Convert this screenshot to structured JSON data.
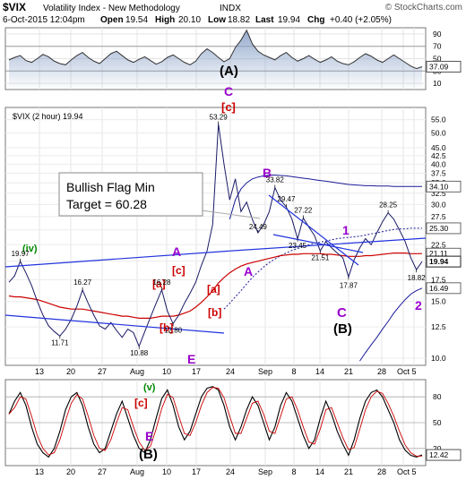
{
  "header": {
    "symbol": "$VIX",
    "name": "Volatility Index - New Methodology",
    "exchange": "INDX",
    "datetime": "6-Oct-2015 12:04pm",
    "watermark": "© StockCharts.com",
    "quote": {
      "open_label": "Open",
      "open": "19.54",
      "high_label": "High",
      "high": "20.10",
      "low_label": "Low",
      "low": "18.82",
      "last_label": "Last",
      "last": "19.94",
      "chg_label": "Chg",
      "chg": "+0.40 (+2.05%)"
    }
  },
  "colors": {
    "price": "#1a1a66",
    "ma_red": "#cc0000",
    "boll": "#1a1a99",
    "trend": "#2233dd",
    "wave_purple": "#9900cc",
    "wave_red": "#cc0000",
    "wave_green": "#008800",
    "last_box": "#ffffff"
  },
  "chart_data": [
    {
      "type": "line",
      "panel": "indicator-top",
      "ylim": [
        0,
        100
      ],
      "ticks": [
        "90",
        "70",
        "50",
        "30",
        "10"
      ],
      "last_value_label": "37.09",
      "values": [
        48,
        52,
        55,
        47,
        44,
        50,
        57,
        53,
        46,
        42,
        40,
        48,
        55,
        60,
        52,
        46,
        42,
        50,
        58,
        62,
        55,
        48,
        44,
        49,
        53,
        47,
        41,
        45,
        52,
        56,
        50,
        44,
        40,
        46,
        58,
        66,
        60,
        52,
        45,
        50,
        68,
        80,
        96,
        74,
        62,
        56,
        52,
        48,
        55,
        60,
        52,
        46,
        50,
        55,
        49,
        44,
        48,
        53,
        46,
        42,
        40,
        45,
        52,
        58,
        54,
        48,
        44,
        50,
        56,
        50,
        44,
        38,
        34,
        37
      ]
    },
    {
      "type": "line",
      "panel": "price",
      "scale": "log",
      "series_label": "$VIX (2 hour) 19.94",
      "ylim": [
        9.5,
        60
      ],
      "y_ticks": [
        "55.0",
        "50.0",
        "45.0",
        "42.5",
        "40.0",
        "37.5",
        "35.0",
        "32.5",
        "30.0",
        "27.5",
        "25.0",
        "22.5",
        "20.0",
        "17.5",
        "15.0",
        "12.5",
        "10.0"
      ],
      "right_labels": [
        "34.10",
        "25.30",
        "21.11",
        "19.94",
        "16.49"
      ],
      "x_tick_labels": [
        "13",
        "20",
        "27",
        "Aug",
        "10",
        "17",
        "24",
        "Sep",
        "8",
        "14",
        "21",
        "28",
        "Oct",
        "5"
      ],
      "annotations": [
        "19.97",
        "16.27",
        "11.71",
        "16.28",
        "12.80",
        "10.88",
        "53.29",
        "33.82",
        "29.47",
        "27.22",
        "24.49",
        "23.45",
        "21.51",
        "17.87",
        "28.25",
        "18.82"
      ],
      "values": [
        17.2,
        18.0,
        19.97,
        18.4,
        16.8,
        15.0,
        13.6,
        12.6,
        12.1,
        11.71,
        12.3,
        13.2,
        14.5,
        16.27,
        14.8,
        13.6,
        12.6,
        12.3,
        12.9,
        12.2,
        11.6,
        12.3,
        12.0,
        10.88,
        12.1,
        13.4,
        14.8,
        16.28,
        14.0,
        12.8,
        13.6,
        14.8,
        15.9,
        17.2,
        19.4,
        21.5,
        26.0,
        53.29,
        40.0,
        31.0,
        36.0,
        28.5,
        30.5,
        27.0,
        24.49,
        26.0,
        28.5,
        33.82,
        31.0,
        29.47,
        27.0,
        23.45,
        27.22,
        25.5,
        24.0,
        21.51,
        23.0,
        22.0,
        21.2,
        20.5,
        17.87,
        20.2,
        22.0,
        23.5,
        22.5,
        24.5,
        26.5,
        28.25,
        27.0,
        25.0,
        23.0,
        20.5,
        18.82,
        19.94
      ],
      "moving_average_red": [
        15.6,
        15.5,
        15.5,
        15.4,
        15.3,
        15.2,
        15.0,
        14.8,
        14.6,
        14.4,
        14.3,
        14.2,
        14.2,
        14.2,
        14.1,
        14.0,
        13.9,
        13.8,
        13.7,
        13.6,
        13.5,
        13.5,
        13.4,
        13.3,
        13.3,
        13.3,
        13.4,
        13.5,
        13.5,
        13.5,
        13.6,
        13.8,
        14.0,
        14.4,
        14.9,
        15.5,
        16.2,
        17.1,
        17.8,
        18.4,
        18.9,
        19.3,
        19.6,
        19.8,
        20.0,
        20.2,
        20.4,
        20.6,
        20.8,
        20.9,
        21.0,
        21.0,
        21.1,
        21.1,
        21.1,
        21.1,
        21.0,
        21.0,
        20.9,
        20.8,
        20.7,
        20.7,
        20.7,
        20.8,
        20.8,
        20.9,
        21.0,
        21.1,
        21.2,
        21.2,
        21.2,
        21.1,
        21.1,
        21.11
      ],
      "bollinger_upper": [
        null,
        null,
        null,
        null,
        null,
        null,
        null,
        null,
        null,
        null,
        null,
        null,
        null,
        null,
        null,
        null,
        null,
        null,
        null,
        null,
        null,
        null,
        null,
        null,
        null,
        null,
        null,
        null,
        null,
        null,
        null,
        null,
        null,
        null,
        null,
        null,
        null,
        null,
        null,
        27.0,
        31.0,
        33.5,
        35.0,
        36.0,
        36.5,
        36.8,
        37.0,
        37.0,
        36.9,
        36.8,
        36.6,
        36.4,
        36.2,
        36.0,
        35.8,
        35.6,
        35.4,
        35.2,
        35.0,
        34.8,
        34.6,
        34.5,
        34.4,
        34.3,
        34.3,
        34.2,
        34.2,
        34.2,
        34.1,
        34.1,
        34.1,
        34.1,
        34.1,
        34.1
      ],
      "bollinger_lower": [
        null,
        null,
        null,
        null,
        null,
        null,
        null,
        null,
        null,
        null,
        null,
        null,
        null,
        null,
        null,
        null,
        null,
        null,
        null,
        null,
        null,
        null,
        null,
        null,
        null,
        null,
        null,
        null,
        null,
        null,
        null,
        null,
        null,
        null,
        null,
        null,
        null,
        null,
        null,
        null,
        null,
        null,
        null,
        null,
        null,
        null,
        null,
        null,
        null,
        null,
        null,
        null,
        null,
        null,
        null,
        null,
        null,
        null,
        null,
        null,
        null,
        null,
        9.8,
        10.4,
        11.0,
        11.6,
        12.3,
        13.0,
        13.8,
        14.5,
        15.2,
        15.8,
        16.2,
        16.49
      ],
      "moving_average_dotted": [
        null,
        null,
        null,
        null,
        null,
        null,
        null,
        null,
        null,
        null,
        null,
        null,
        null,
        null,
        null,
        null,
        null,
        null,
        null,
        null,
        null,
        null,
        null,
        null,
        null,
        null,
        null,
        null,
        null,
        null,
        null,
        null,
        null,
        null,
        null,
        null,
        null,
        null,
        14.2,
        14.8,
        15.5,
        16.2,
        17.0,
        17.8,
        18.5,
        19.2,
        19.8,
        20.3,
        20.8,
        21.2,
        21.6,
        21.9,
        22.2,
        22.5,
        22.7,
        22.9,
        23.1,
        23.3,
        23.5,
        23.6,
        23.7,
        23.8,
        23.9,
        24.1,
        24.3,
        24.5,
        24.7,
        24.9,
        25.1,
        25.2,
        25.2,
        25.3,
        25.3,
        25.3
      ]
    },
    {
      "type": "line",
      "panel": "indicator-bottom",
      "ylim": [
        0,
        100
      ],
      "ticks": [
        "80",
        "50",
        "20"
      ],
      "last_value_label": "12.42",
      "values": [
        60,
        75,
        85,
        70,
        45,
        25,
        15,
        10,
        20,
        40,
        65,
        80,
        85,
        70,
        45,
        25,
        15,
        20,
        40,
        60,
        75,
        55,
        35,
        20,
        15,
        30,
        55,
        78,
        88,
        70,
        45,
        30,
        40,
        60,
        80,
        90,
        92,
        88,
        70,
        45,
        30,
        45,
        65,
        80,
        70,
        50,
        30,
        45,
        70,
        85,
        75,
        55,
        35,
        20,
        30,
        55,
        75,
        60,
        40,
        25,
        12,
        30,
        55,
        75,
        85,
        88,
        80,
        65,
        50,
        30,
        18,
        12,
        10,
        12.42
      ]
    }
  ],
  "annotations": {
    "callout_line1": "Bullish Flag Min",
    "callout_line2": "Target = 60.28",
    "waves": {
      "A_paren": "(A)",
      "C_top": "C",
      "c_top": "[c]",
      "B_sep": "B",
      "A_mid": "A",
      "A_lower": "A",
      "one": "1",
      "C_lower": "C",
      "B_paren": "(B)",
      "two": "2",
      "a1": "[a]",
      "c1": "[c]",
      "a2": "[a]",
      "b1": "[b]",
      "b2": "[b]",
      "E_low": "E",
      "iv": "(iv)",
      "v_low": "(v)",
      "c_low": "[c]",
      "E_lower": "E",
      "B_paren_low": "(B)"
    }
  }
}
